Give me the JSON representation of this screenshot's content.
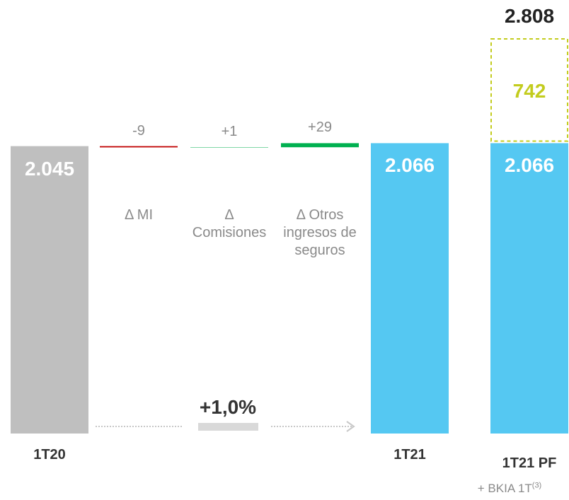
{
  "chart_data": {
    "type": "waterfall",
    "categories": [
      "1T20",
      "Δ MI",
      "Δ Comisiones",
      "Δ Otros ingresos de seguros",
      "1T21",
      "1T21 PF"
    ],
    "values": [
      2045,
      -9,
      1,
      29,
      2066,
      2066
    ],
    "value_labels": [
      "2.045",
      "-9",
      "+1",
      "+29",
      "2.066",
      "2.066"
    ],
    "measure": [
      "total",
      "relative",
      "relative",
      "relative",
      "total",
      "total"
    ],
    "colors": [
      "#bfbfbf",
      "#c00000",
      "#00b050",
      "#00b050",
      "#55c8f2",
      "#55c8f2"
    ],
    "addition": {
      "value": 742,
      "value_label": "742",
      "color": "#c3cc1e"
    },
    "total": {
      "value": 2808,
      "value_label": "2.808"
    },
    "annotation": "+1,0%",
    "subtitle": "+ BKIA 1T",
    "subtitle_note": "(3)"
  }
}
